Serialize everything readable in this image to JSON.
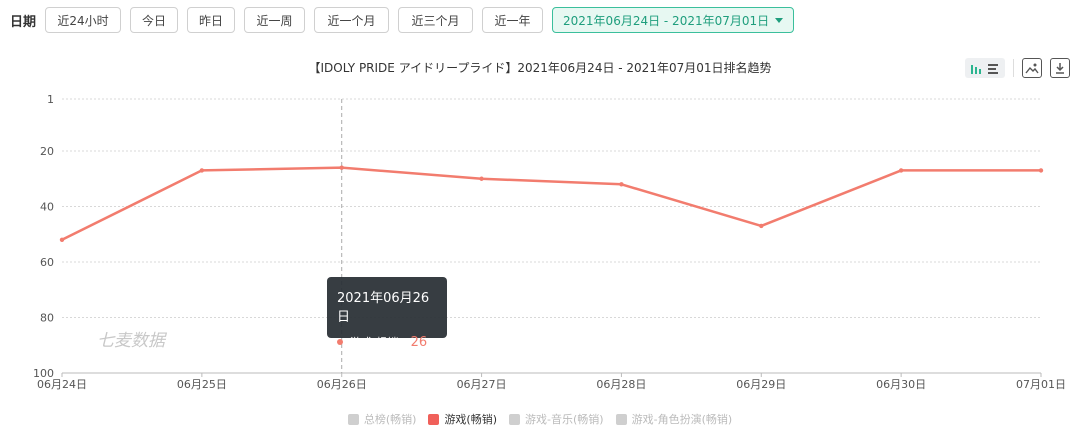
{
  "filter": {
    "label": "日期",
    "buttons": [
      "近24小时",
      "今日",
      "昨日",
      "近一周",
      "近一个月",
      "近三个月",
      "近一年"
    ],
    "range": "2021年06月24日 - 2021年07月01日",
    "accent": "#1f9e7d"
  },
  "chart_data": {
    "type": "line",
    "title": "【IDOLY PRIDE アイドリープライド】2021年06月24日 - 2021年07月01日排名趋势",
    "categories": [
      "06月24日",
      "06月25日",
      "06月26日",
      "06月27日",
      "06月28日",
      "06月29日",
      "06月30日",
      "07月01日"
    ],
    "series": [
      {
        "name": "游戏(畅销)",
        "values": [
          52,
          27,
          26,
          30,
          32,
          47,
          27,
          27
        ],
        "color": "#f27c6e",
        "active": true
      }
    ],
    "y_ticks": [
      1,
      20,
      40,
      60,
      80,
      100
    ],
    "ylim": [
      1,
      100
    ],
    "y_inverted": true,
    "grid": true,
    "legend": [
      {
        "name": "总榜(畅销)",
        "active": false
      },
      {
        "name": "游戏(畅销)",
        "active": true
      },
      {
        "name": "游戏-音乐(畅销)",
        "active": false
      },
      {
        "name": "游戏-角色扮演(畅销)",
        "active": false
      }
    ],
    "legend_position": "bottom"
  },
  "tooltip": {
    "title": "2021年06月26日",
    "series": "游戏(畅销)",
    "value": "26"
  },
  "watermark": "七麦数据",
  "icons": [
    "bar-view-icon",
    "list-view-icon",
    "image-icon",
    "download-icon",
    "caret-down-icon"
  ]
}
